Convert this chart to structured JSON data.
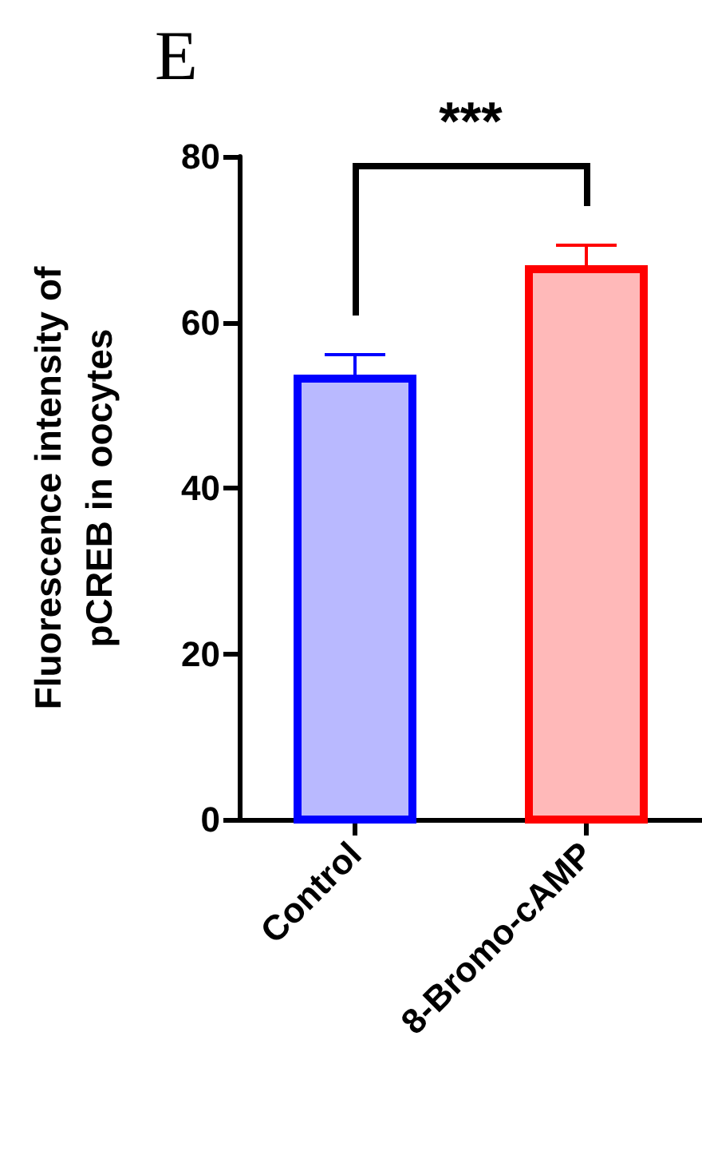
{
  "chart_data": {
    "type": "bar",
    "title": "E",
    "ylabel": "Fluorescence intensity of\npCREB in oocytes",
    "categories": [
      "Control",
      "8-Bromo-cAMP"
    ],
    "values": [
      53.2,
      66.4
    ],
    "errors": [
      2.9,
      2.9
    ],
    "colors": [
      "#0000ff",
      "#ff0000"
    ],
    "ylim": [
      0,
      80
    ],
    "yticks": [
      0,
      20,
      40,
      60,
      80
    ],
    "grid": false,
    "annotations": [
      "***"
    ]
  }
}
